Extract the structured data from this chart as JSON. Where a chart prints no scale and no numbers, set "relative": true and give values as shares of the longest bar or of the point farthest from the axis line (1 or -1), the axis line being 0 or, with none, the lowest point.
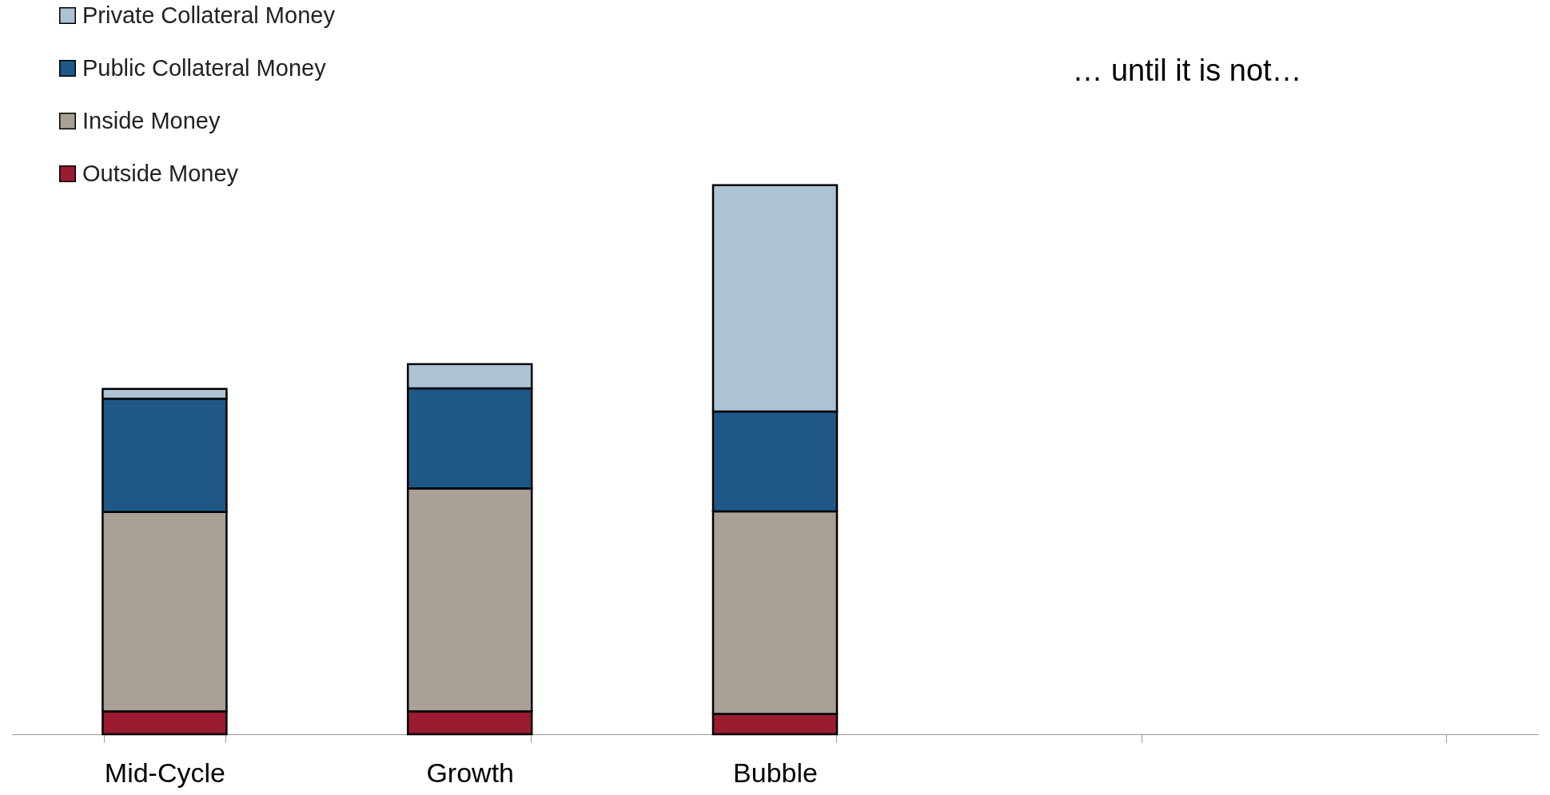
{
  "chart_data": {
    "type": "bar",
    "stacked": true,
    "relative": true,
    "legend": "top left",
    "grid": false,
    "categories": [
      "Mid-Cycle",
      "Growth",
      "Bubble",
      null,
      null
    ],
    "series": [
      {
        "name": "Outside Money",
        "color": "#9b1b30",
        "values": [
          0.042,
          0.042,
          0.037,
          null,
          null
        ]
      },
      {
        "name": "Inside Money",
        "color": "#a9a096",
        "values": [
          0.363,
          0.406,
          0.369,
          null,
          null
        ]
      },
      {
        "name": "Public Collateral Money",
        "color": "#1f5888",
        "values": [
          0.206,
          0.182,
          0.182,
          null,
          null
        ]
      },
      {
        "name": "Private Collateral Money",
        "color": "#adc2d3",
        "values": [
          0.018,
          0.044,
          0.412,
          null,
          null
        ]
      }
    ],
    "annotations": [
      "… until it is not…"
    ]
  }
}
